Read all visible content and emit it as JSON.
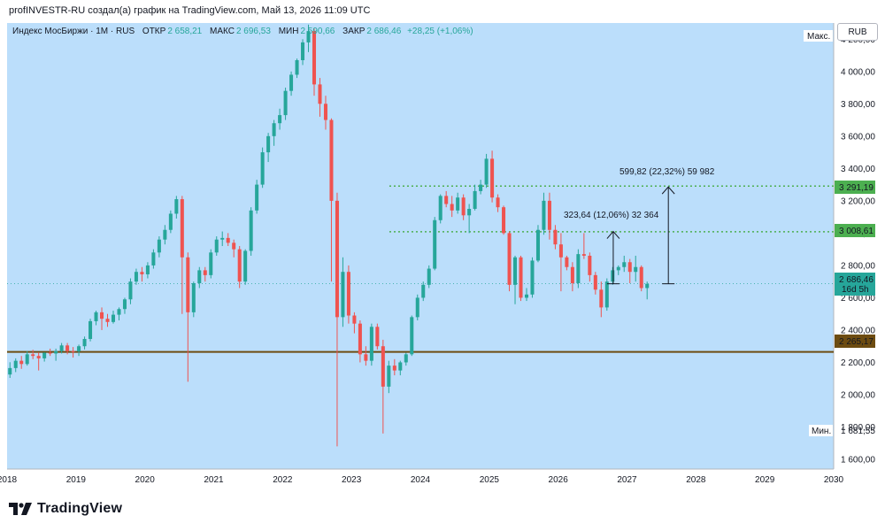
{
  "header": {
    "credit": "profINVESTR-RU создал(а) график на TradingView.com, Май 13, 2026 11:09 UTC"
  },
  "legend": {
    "symbol": "Индекс МосБиржи · 1М · RUS",
    "open_label": "ОТКР",
    "open_value": "2 658,21",
    "high_label": "МАКС",
    "high_value": "2 696,53",
    "low_label": "МИН",
    "low_value": "2 590,66",
    "close_label": "ЗАКР",
    "close_value": "2 686,46",
    "change": "+28,25 (+1,06%)"
  },
  "currency_badge": "RUB",
  "scale_labels": {
    "max": "Макс.",
    "min": "Мин.",
    "min_value": "1 681,55"
  },
  "price_tags": {
    "resistance_upper": "3 291,19",
    "resistance_lower": "3 008,61",
    "current": "2 686,46",
    "countdown": "16d 5h",
    "support": "2 265,17"
  },
  "annotations": {
    "target1": "323,64 (12,06%) 32 364",
    "target2": "599,82 (22,32%) 59 982"
  },
  "brand": "TradingView",
  "colors": {
    "background": "#bbdefb",
    "up": "#26a69a",
    "down": "#ef5350",
    "support": "#6d4c11",
    "resistance": "#4caf50"
  },
  "chart_data": {
    "type": "candlestick",
    "interval": "1M",
    "x_ticks": [
      "2018",
      "2019",
      "2020",
      "2021",
      "2022",
      "2023",
      "2024",
      "2025",
      "2026",
      "2027",
      "2028",
      "2029",
      "2030"
    ],
    "y_ticks": [
      "1 600,00",
      "1 800,00",
      "2 000,00",
      "2 200,00",
      "2 400,00",
      "2 600,00",
      "2 800,00",
      "3 000,00",
      "3 200,00",
      "3 400,00",
      "3 600,00",
      "3 800,00",
      "4 000,00",
      "4 200,00"
    ],
    "y_values": [
      1600,
      1800,
      2000,
      2200,
      2400,
      2600,
      2800,
      3000,
      3200,
      3400,
      3600,
      3800,
      4000,
      4200
    ],
    "ylim": [
      1540,
      4300
    ],
    "xlim": [
      2018.0,
      2030.0
    ],
    "horizontal_levels": [
      {
        "value": 3291.19,
        "style": "dotted"
      },
      {
        "value": 3008.61,
        "style": "dotted"
      },
      {
        "value": 2265.17,
        "style": "solid"
      },
      {
        "value": 2686.46,
        "style": "current"
      }
    ],
    "measure_arrows": [
      {
        "x": 2026.8,
        "from": 2686.46,
        "to": 3010.1
      },
      {
        "x": 2027.6,
        "from": 2686.46,
        "to": 3286.28
      }
    ],
    "candles": [
      [
        2125,
        2201,
        2104,
        2165
      ],
      [
        2165,
        2225,
        2140,
        2210
      ],
      [
        2210,
        2240,
        2160,
        2190
      ],
      [
        2190,
        2270,
        2180,
        2250
      ],
      [
        2250,
        2278,
        2220,
        2240
      ],
      [
        2240,
        2262,
        2150,
        2225
      ],
      [
        2225,
        2262,
        2205,
        2260
      ],
      [
        2260,
        2285,
        2240,
        2255
      ],
      [
        2255,
        2285,
        2210,
        2270
      ],
      [
        2270,
        2320,
        2255,
        2305
      ],
      [
        2305,
        2320,
        2250,
        2270
      ],
      [
        2270,
        2295,
        2230,
        2268
      ],
      [
        2268,
        2310,
        2240,
        2300
      ],
      [
        2300,
        2360,
        2280,
        2345
      ],
      [
        2345,
        2470,
        2330,
        2455
      ],
      [
        2455,
        2520,
        2430,
        2510
      ],
      [
        2510,
        2540,
        2400,
        2470
      ],
      [
        2470,
        2500,
        2420,
        2450
      ],
      [
        2450,
        2520,
        2440,
        2495
      ],
      [
        2495,
        2540,
        2460,
        2530
      ],
      [
        2530,
        2600,
        2500,
        2590
      ],
      [
        2590,
        2720,
        2560,
        2700
      ],
      [
        2700,
        2780,
        2680,
        2760
      ],
      [
        2760,
        2790,
        2700,
        2745
      ],
      [
        2745,
        2820,
        2720,
        2800
      ],
      [
        2800,
        2900,
        2780,
        2880
      ],
      [
        2880,
        2980,
        2850,
        2960
      ],
      [
        2960,
        3050,
        2930,
        3020
      ],
      [
        3020,
        3140,
        3000,
        3120
      ],
      [
        3120,
        3230,
        3090,
        3210
      ],
      [
        3210,
        3230,
        2500,
        2850
      ],
      [
        2850,
        2880,
        2080,
        2510
      ],
      [
        2510,
        2700,
        2480,
        2690
      ],
      [
        2690,
        2790,
        2660,
        2770
      ],
      [
        2770,
        2790,
        2700,
        2740
      ],
      [
        2740,
        2900,
        2720,
        2880
      ],
      [
        2880,
        2980,
        2860,
        2960
      ],
      [
        2960,
        3010,
        2920,
        2970
      ],
      [
        2970,
        3000,
        2920,
        2940
      ],
      [
        2940,
        2960,
        2850,
        2900
      ],
      [
        2900,
        2920,
        2660,
        2700
      ],
      [
        2700,
        2900,
        2680,
        2890
      ],
      [
        2890,
        3160,
        2860,
        3140
      ],
      [
        3140,
        3330,
        3120,
        3300
      ],
      [
        3300,
        3530,
        3280,
        3500
      ],
      [
        3500,
        3620,
        3440,
        3600
      ],
      [
        3600,
        3700,
        3540,
        3680
      ],
      [
        3680,
        3770,
        3640,
        3730
      ],
      [
        3730,
        3900,
        3700,
        3880
      ],
      [
        3880,
        4000,
        3850,
        3980
      ],
      [
        3980,
        4080,
        3960,
        4070
      ],
      [
        4070,
        4200,
        4040,
        4180
      ],
      [
        4180,
        4290,
        4120,
        4250
      ],
      [
        4250,
        4265,
        3850,
        3920
      ],
      [
        3920,
        3960,
        3720,
        3800
      ],
      [
        3800,
        3850,
        3640,
        3700
      ],
      [
        3700,
        3710,
        2700,
        3200
      ],
      [
        3200,
        3250,
        1680,
        2480
      ],
      [
        2480,
        2850,
        2420,
        2760
      ],
      [
        2760,
        2800,
        2440,
        2490
      ],
      [
        2490,
        2510,
        2380,
        2440
      ],
      [
        2440,
        2460,
        2200,
        2250
      ],
      [
        2250,
        2300,
        2180,
        2210
      ],
      [
        2210,
        2440,
        2180,
        2420
      ],
      [
        2420,
        2440,
        2280,
        2300
      ],
      [
        2300,
        2340,
        1760,
        2050
      ],
      [
        2050,
        2210,
        2010,
        2180
      ],
      [
        2180,
        2220,
        2120,
        2150
      ],
      [
        2150,
        2210,
        2120,
        2200
      ],
      [
        2200,
        2260,
        2180,
        2250
      ],
      [
        2250,
        2490,
        2240,
        2480
      ],
      [
        2480,
        2620,
        2460,
        2600
      ],
      [
        2600,
        2700,
        2580,
        2680
      ],
      [
        2680,
        2800,
        2660,
        2780
      ],
      [
        2780,
        3100,
        2770,
        3080
      ],
      [
        3080,
        3240,
        3060,
        3230
      ],
      [
        3230,
        3260,
        3160,
        3180
      ],
      [
        3180,
        3230,
        3100,
        3140
      ],
      [
        3140,
        3250,
        3120,
        3220
      ],
      [
        3220,
        3240,
        3080,
        3110
      ],
      [
        3110,
        3180,
        3000,
        3150
      ],
      [
        3150,
        3300,
        3140,
        3260
      ],
      [
        3260,
        3330,
        3240,
        3300
      ],
      [
        3300,
        3490,
        3280,
        3460
      ],
      [
        3460,
        3510,
        3190,
        3220
      ],
      [
        3220,
        3240,
        3130,
        3160
      ],
      [
        3160,
        3170,
        2990,
        3000
      ],
      [
        3000,
        3010,
        2640,
        2680
      ],
      [
        2680,
        2860,
        2560,
        2850
      ],
      [
        2850,
        2860,
        2580,
        2600
      ],
      [
        2600,
        2660,
        2580,
        2620
      ],
      [
        2620,
        2850,
        2600,
        2830
      ],
      [
        2830,
        3050,
        2820,
        3020
      ],
      [
        3020,
        3250,
        2990,
        3200
      ],
      [
        3200,
        3250,
        2960,
        3020
      ],
      [
        3020,
        3050,
        2900,
        2930
      ],
      [
        2930,
        3000,
        2640,
        2850
      ],
      [
        2850,
        2860,
        2770,
        2790
      ],
      [
        2790,
        2820,
        2640,
        2690
      ],
      [
        2690,
        2900,
        2660,
        2870
      ],
      [
        2870,
        3000,
        2840,
        2860
      ],
      [
        2860,
        2880,
        2700,
        2740
      ],
      [
        2740,
        2760,
        2620,
        2650
      ],
      [
        2650,
        2700,
        2480,
        2540
      ],
      [
        2540,
        2720,
        2520,
        2700
      ],
      [
        2700,
        2790,
        2680,
        2770
      ],
      [
        2770,
        2800,
        2740,
        2790
      ],
      [
        2790,
        2860,
        2760,
        2820
      ],
      [
        2820,
        2840,
        2690,
        2760
      ],
      [
        2760,
        2860,
        2700,
        2790
      ],
      [
        2790,
        2800,
        2640,
        2660
      ],
      [
        2660,
        2700,
        2590,
        2686
      ]
    ]
  }
}
